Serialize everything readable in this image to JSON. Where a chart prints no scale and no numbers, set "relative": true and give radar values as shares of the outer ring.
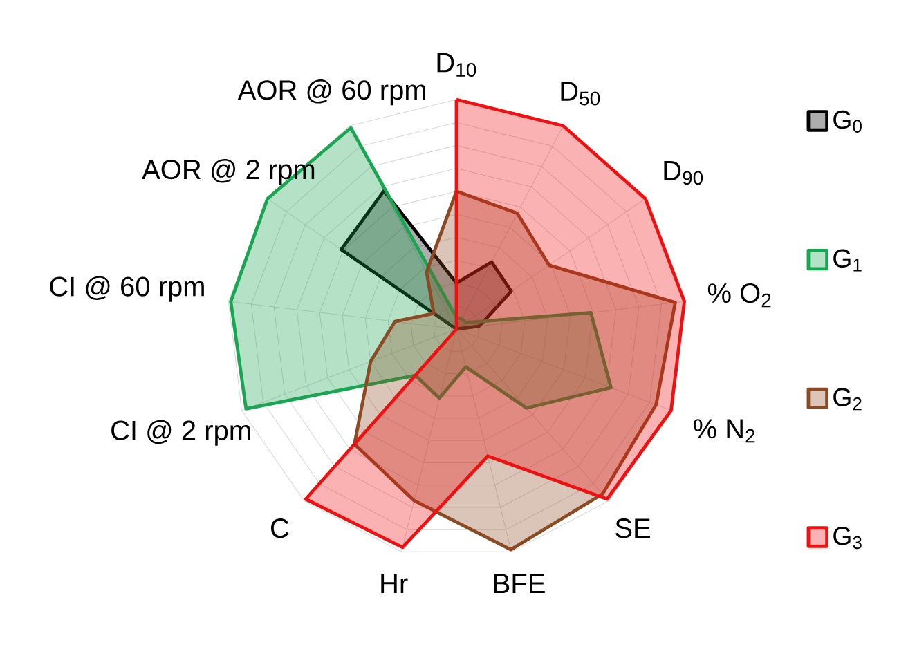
{
  "chart_data": {
    "type": "radar",
    "relative": true,
    "grid": true,
    "legend": "right",
    "categories": [
      "D$_{10}$",
      "D$_{50}$",
      "D$_{90}$",
      "% O$_{2}$",
      "% N$_{2}$",
      "SE",
      "BFE",
      "Hr",
      "C",
      "CI @ 2 rpm",
      "CI @ 60 rpm",
      "AOR @ 2 rpm",
      "AOR @ 60 rpm"
    ],
    "series": [
      {
        "name": "G$_{0}$",
        "color": "#000000",
        "values": [
          0.2,
          0.33,
          0.29,
          0.1,
          0,
          0,
          0,
          0,
          0,
          0,
          0,
          0.61,
          0.68
        ]
      },
      {
        "name": "G$_{1}$",
        "color": "#1aa552",
        "values": [
          0.05,
          0.05,
          0.05,
          0.59,
          0.72,
          0.46,
          0.17,
          0.31,
          0.27,
          0.98,
          0.99,
          1.0,
          0.99
        ]
      },
      {
        "name": "G$_{2}$",
        "color": "#8b4a22",
        "values": [
          0.6,
          0.57,
          0.49,
          0.96,
          0.93,
          0.96,
          0.99,
          0.77,
          0.67,
          0.4,
          0.27,
          0.12,
          0.28
        ]
      },
      {
        "name": "G$_{3}$",
        "color": "#ee1111",
        "values": [
          1.0,
          1.0,
          1.0,
          1.0,
          1.0,
          0.99,
          0.57,
          0.98,
          0.99,
          0,
          0,
          0,
          0
        ]
      }
    ]
  }
}
